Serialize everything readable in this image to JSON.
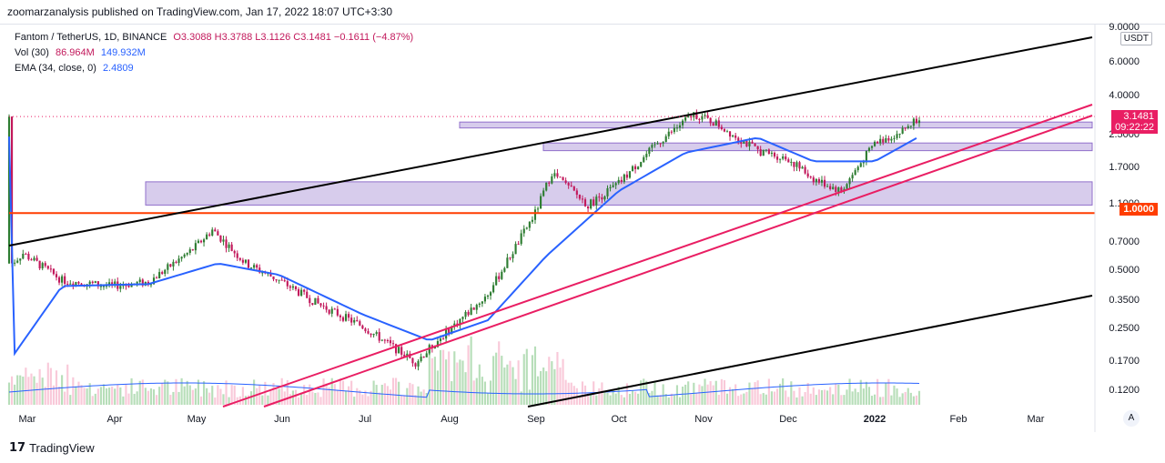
{
  "publish_line": "zoomarzanalysis published on TradingView.com, Jan 17, 2022 18:07 UTC+3:30",
  "legend": {
    "symbol": "Fantom / TetherUS, 1D, BINANCE",
    "ohlc": "O3.3088  H3.3788  L3.1126  C3.1481  −0.1611 (−4.87%)",
    "vol_label": "Vol (30)",
    "vol_value1": "86.964M",
    "vol_value2": "149.932M",
    "ema_label": "EMA (34, close, 0)",
    "ema_value": "2.4809"
  },
  "price_axis": {
    "currency": "USDT",
    "ticks": [
      "9.0000",
      "6.0000",
      "4.0000",
      "2.5000",
      "1.7000",
      "1.1000",
      "0.7000",
      "0.5000",
      "0.3500",
      "0.2500",
      "0.1700",
      "0.1200"
    ],
    "last_price": "3.1481",
    "countdown": "09:22:22",
    "level_badge": "1.0000"
  },
  "time_axis": [
    "Mar",
    "Apr",
    "May",
    "Jun",
    "Jul",
    "Aug",
    "Sep",
    "Oct",
    "Nov",
    "Dec",
    "2022",
    "Feb",
    "Mar"
  ],
  "autoscale_label": "A",
  "brand": "TradingView",
  "colors": {
    "up": "#26a69a",
    "down": "#ef5350",
    "candle_up": "#2e7d32",
    "candle_down": "#c2185b",
    "ema": "#2962ff",
    "support": "#ff3d00",
    "trend": "#e91e63",
    "zone_fill": "#d1c4e9",
    "zone_stroke": "#7e57c2"
  },
  "chart_data": {
    "type": "candlestick",
    "title": "Fantom / TetherUS, 1D, BINANCE",
    "y_scale": "log",
    "ylim": [
      0.09,
      9.0
    ],
    "x_range": [
      "2021-02-24",
      "2022-03-25"
    ],
    "series": [
      {
        "name": "FTMUSDT close (approx.)",
        "x": [
          "Feb-25",
          "Mar-01",
          "Mar-15",
          "Apr-01",
          "Apr-15",
          "May-01",
          "May-08",
          "May-20",
          "Jun-01",
          "Jun-15",
          "Jul-01",
          "Jul-20",
          "Aug-01",
          "Aug-15",
          "Sep-01",
          "Sep-07",
          "Sep-20",
          "Oct-01",
          "Oct-15",
          "Oct-28",
          "Nov-05",
          "Nov-20",
          "Dec-01",
          "Dec-10",
          "Dec-20",
          "Jan-01",
          "Jan-10",
          "Jan-17"
        ],
        "values": [
          0.55,
          0.62,
          0.45,
          0.42,
          0.44,
          0.65,
          0.82,
          0.55,
          0.45,
          0.34,
          0.26,
          0.17,
          0.25,
          0.38,
          1.0,
          1.62,
          1.1,
          1.42,
          2.3,
          3.25,
          2.9,
          2.1,
          1.9,
          1.5,
          1.3,
          2.3,
          2.6,
          3.1481
        ]
      },
      {
        "name": "EMA (34, close, 0)",
        "x": [
          "Feb-25",
          "Mar-15",
          "Apr-15",
          "May-10",
          "Jun-01",
          "Jul-01",
          "Jul-25",
          "Aug-15",
          "Sep-05",
          "Oct-01",
          "Oct-25",
          "Nov-20",
          "Dec-10",
          "Jan-01",
          "Jan-17"
        ],
        "values": [
          0.18,
          0.42,
          0.43,
          0.55,
          0.48,
          0.3,
          0.22,
          0.28,
          0.6,
          1.3,
          2.05,
          2.45,
          1.85,
          1.85,
          2.4809
        ]
      }
    ],
    "volume_legend": {
      "label": "Vol (30)",
      "values": [
        "86.964M",
        "149.932M"
      ]
    },
    "annotations": {
      "support_level": 1.0,
      "zones": [
        [
          2.75,
          2.95
        ],
        [
          2.1,
          2.3
        ],
        [
          1.1,
          1.45
        ]
      ]
    }
  }
}
